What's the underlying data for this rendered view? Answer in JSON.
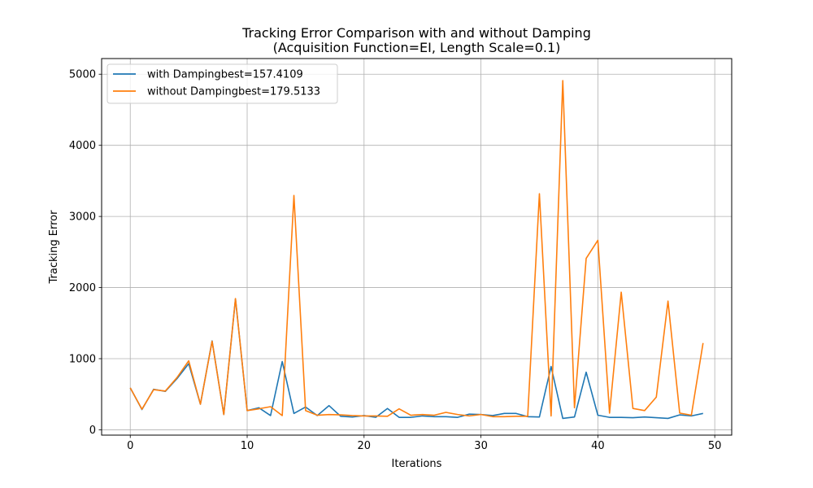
{
  "chart_data": {
    "type": "line",
    "title": "Tracking Error Comparison with and without Damping",
    "subtitle": "(Acquisition Function=EI, Length Scale=0.1)",
    "xlabel": "Iterations",
    "ylabel": "Tracking Error",
    "xlim": [
      -2.45,
      51.45
    ],
    "ylim": [
      -75,
      5220
    ],
    "xticks": [
      0,
      10,
      20,
      30,
      40,
      50
    ],
    "yticks": [
      0,
      1000,
      2000,
      3000,
      4000,
      5000
    ],
    "grid": true,
    "legend_position": "top-left",
    "x": [
      0,
      1,
      2,
      3,
      4,
      5,
      6,
      7,
      8,
      9,
      10,
      11,
      12,
      13,
      14,
      15,
      16,
      17,
      18,
      19,
      20,
      21,
      22,
      23,
      24,
      25,
      26,
      27,
      28,
      29,
      30,
      31,
      32,
      33,
      34,
      35,
      36,
      37,
      38,
      39,
      40,
      41,
      42,
      43,
      44,
      45,
      46,
      47,
      48,
      49
    ],
    "series": [
      {
        "name": "with Dampingbest=157.4109",
        "color": "#1f77b4",
        "values": [
          590,
          285,
          570,
          540,
          720,
          930,
          360,
          1250,
          215,
          1840,
          270,
          310,
          200,
          960,
          230,
          320,
          200,
          340,
          190,
          180,
          200,
          175,
          300,
          175,
          175,
          195,
          185,
          185,
          175,
          220,
          215,
          200,
          230,
          230,
          185,
          180,
          890,
          160,
          180,
          810,
          205,
          175,
          175,
          170,
          180,
          170,
          160,
          210,
          195,
          230
        ]
      },
      {
        "name": "without Dampingbest=179.5133",
        "color": "#ff7f0e",
        "values": [
          590,
          290,
          565,
          545,
          735,
          970,
          360,
          1245,
          215,
          1845,
          270,
          295,
          325,
          200,
          3295,
          270,
          205,
          215,
          210,
          200,
          195,
          195,
          190,
          295,
          205,
          215,
          205,
          245,
          215,
          195,
          215,
          185,
          185,
          190,
          190,
          3320,
          195,
          4910,
          310,
          2410,
          2665,
          235,
          1935,
          300,
          270,
          460,
          1810,
          235,
          205,
          1220
        ]
      }
    ]
  }
}
